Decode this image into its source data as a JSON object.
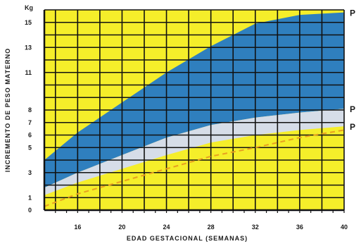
{
  "chart_data": {
    "type": "area",
    "xlabel": "EDAD GESTACIONAL (SEMANAS)",
    "ylabel": "INCREMENTO DE PESO MATERNO",
    "yunit": "Kg",
    "xlim": [
      13,
      40
    ],
    "ylim": [
      0,
      16
    ],
    "x_ticks": [
      16,
      20,
      24,
      28,
      32,
      36,
      40
    ],
    "y_ticks": [
      0,
      1,
      3,
      5,
      6,
      7,
      8,
      11,
      13,
      15
    ],
    "grid": true,
    "background_color": "#f5ee2a",
    "band_colors": {
      "upper": "#2f7fbe",
      "middle": "#d6dde8",
      "dashed": "#e8a020"
    },
    "x": [
      13,
      16,
      20,
      24,
      28,
      32,
      36,
      40
    ],
    "series": [
      {
        "name": "P",
        "values": [
          4.0,
          6.2,
          8.6,
          11.0,
          13.1,
          14.9,
          15.6,
          15.8
        ]
      },
      {
        "name": "P",
        "values": [
          1.8,
          3.0,
          4.4,
          5.8,
          6.8,
          7.4,
          7.8,
          8.1
        ]
      },
      {
        "name": "P",
        "values": [
          1.2,
          2.2,
          3.3,
          4.4,
          5.4,
          6.0,
          6.4,
          6.7
        ]
      },
      {
        "name": "",
        "values": [
          0.3,
          1.3,
          2.3,
          3.3,
          4.3,
          5.0,
          5.8,
          6.4
        ]
      }
    ]
  }
}
